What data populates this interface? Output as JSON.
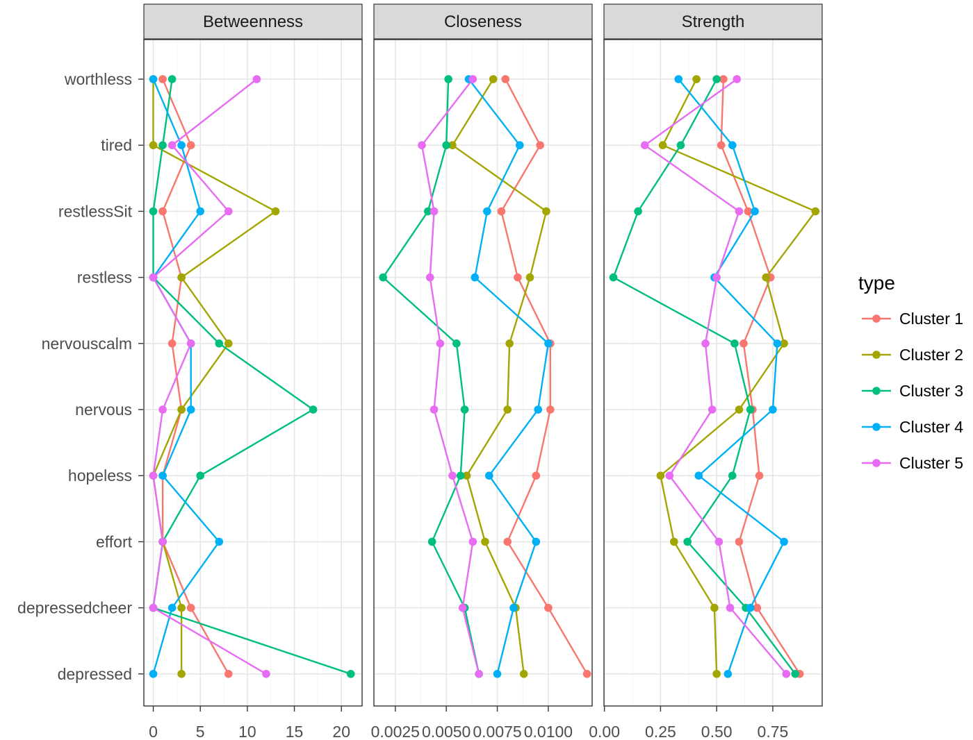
{
  "chart_data": {
    "type": "line",
    "facets": [
      "Betweenness",
      "Closeness",
      "Strength"
    ],
    "categories": [
      "worthless",
      "tired",
      "restlessSit",
      "restless",
      "nervouscalm",
      "nervous",
      "hopeless",
      "effort",
      "depressedcheer",
      "depressed"
    ],
    "legend": {
      "title": "type",
      "position": "right"
    },
    "grid": true,
    "panels": [
      {
        "name": "Betweenness",
        "xlim": [
          -1,
          22.2
        ],
        "ticks": [
          0,
          5,
          10,
          15,
          20
        ],
        "tick_labels": [
          "0",
          "5",
          "10",
          "15",
          "20"
        ],
        "series": [
          {
            "name": "Cluster 1",
            "color": "#F8766D",
            "values": [
              1,
              4,
              1,
              3,
              2,
              3,
              1,
              1,
              4,
              8
            ]
          },
          {
            "name": "Cluster 2",
            "color": "#A3A500",
            "values": [
              0,
              0,
              13,
              3,
              8,
              3,
              0,
              1,
              3,
              3
            ]
          },
          {
            "name": "Cluster 3",
            "color": "#00BF7D",
            "values": [
              2,
              1,
              0,
              0,
              7,
              17,
              5,
              1,
              0,
              21
            ]
          },
          {
            "name": "Cluster 4",
            "color": "#00B0F6",
            "values": [
              0,
              3,
              5,
              0,
              4,
              4,
              1,
              7,
              2,
              0
            ]
          },
          {
            "name": "Cluster 5",
            "color": "#E76BF3",
            "values": [
              11,
              2,
              8,
              0,
              4,
              1,
              0,
              1,
              0,
              12
            ]
          }
        ]
      },
      {
        "name": "Closeness",
        "xlim": [
          0.00145,
          0.01215
        ],
        "ticks": [
          0.0025,
          0.005,
          0.0075,
          0.01
        ],
        "tick_labels": [
          "0.0025",
          "0.0050",
          "0.0075",
          "0.0100"
        ],
        "series": [
          {
            "name": "Cluster 1",
            "color": "#F8766D",
            "values": [
              0.0079,
              0.0096,
              0.0077,
              0.0085,
              0.0101,
              0.0101,
              0.0094,
              0.008,
              0.01,
              0.0119
            ]
          },
          {
            "name": "Cluster 2",
            "color": "#A3A500",
            "values": [
              0.0073,
              0.0053,
              0.0099,
              0.0091,
              0.0081,
              0.008,
              0.006,
              0.0069,
              0.0084,
              0.0088
            ]
          },
          {
            "name": "Cluster 3",
            "color": "#00BF7D",
            "values": [
              0.0051,
              0.005,
              0.0041,
              0.0019,
              0.0055,
              0.0059,
              0.0057,
              0.0043,
              0.0059,
              0.0066
            ]
          },
          {
            "name": "Cluster 4",
            "color": "#00B0F6",
            "values": [
              0.0061,
              0.0086,
              0.007,
              0.0064,
              0.01,
              0.0095,
              0.0071,
              0.0094,
              0.0083,
              0.0075
            ]
          },
          {
            "name": "Cluster 5",
            "color": "#E76BF3",
            "values": [
              0.0063,
              0.0038,
              0.0044,
              0.0042,
              0.0047,
              0.0044,
              0.0053,
              0.0063,
              0.0058,
              0.0066
            ]
          }
        ]
      },
      {
        "name": "Strength",
        "xlim": [
          -0.002,
          0.97
        ],
        "ticks": [
          0,
          0.25,
          0.5,
          0.75
        ],
        "tick_labels": [
          "0.00",
          "0.25",
          "0.50",
          "0.75"
        ],
        "series": [
          {
            "name": "Cluster 1",
            "color": "#F8766D",
            "values": [
              0.53,
              0.52,
              0.64,
              0.74,
              0.62,
              0.66,
              0.69,
              0.6,
              0.68,
              0.87
            ]
          },
          {
            "name": "Cluster 2",
            "color": "#A3A500",
            "values": [
              0.41,
              0.26,
              0.94,
              0.72,
              0.8,
              0.6,
              0.25,
              0.31,
              0.49,
              0.5
            ]
          },
          {
            "name": "Cluster 3",
            "color": "#00BF7D",
            "values": [
              0.5,
              0.34,
              0.15,
              0.04,
              0.58,
              0.65,
              0.57,
              0.37,
              0.63,
              0.85
            ]
          },
          {
            "name": "Cluster 4",
            "color": "#00B0F6",
            "values": [
              0.33,
              0.57,
              0.67,
              0.49,
              0.77,
              0.75,
              0.42,
              0.8,
              0.65,
              0.55
            ]
          },
          {
            "name": "Cluster 5",
            "color": "#E76BF3",
            "values": [
              0.59,
              0.18,
              0.6,
              0.5,
              0.45,
              0.48,
              0.29,
              0.51,
              0.56,
              0.81
            ]
          }
        ]
      }
    ]
  }
}
